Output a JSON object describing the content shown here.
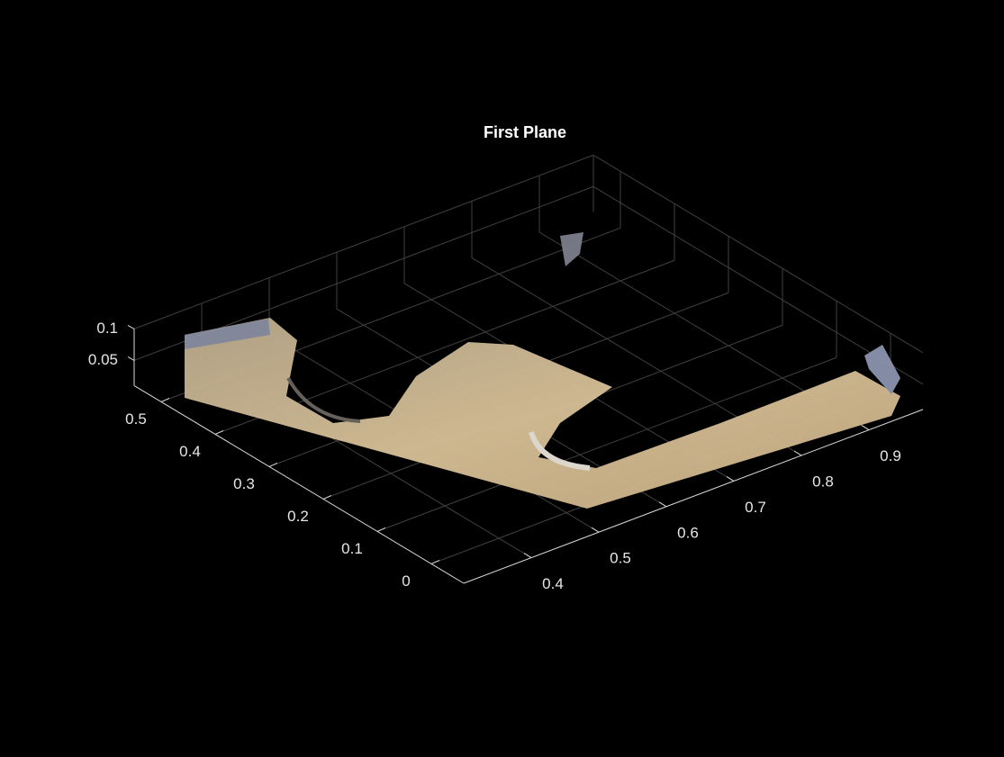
{
  "chart_data": {
    "type": "pointcloud",
    "title": "First Plane",
    "xlim": [
      0.3,
      0.98
    ],
    "xticks": [
      0.4,
      0.5,
      0.6,
      0.7,
      0.8,
      0.9
    ],
    "ylim": [
      -0.06,
      0.55
    ],
    "yticks": [
      0,
      0.1,
      0.2,
      0.3,
      0.4,
      0.5
    ],
    "zlim": [
      0.01,
      0.1
    ],
    "zticks": [
      0.05,
      0.1
    ],
    "grid": true
  }
}
